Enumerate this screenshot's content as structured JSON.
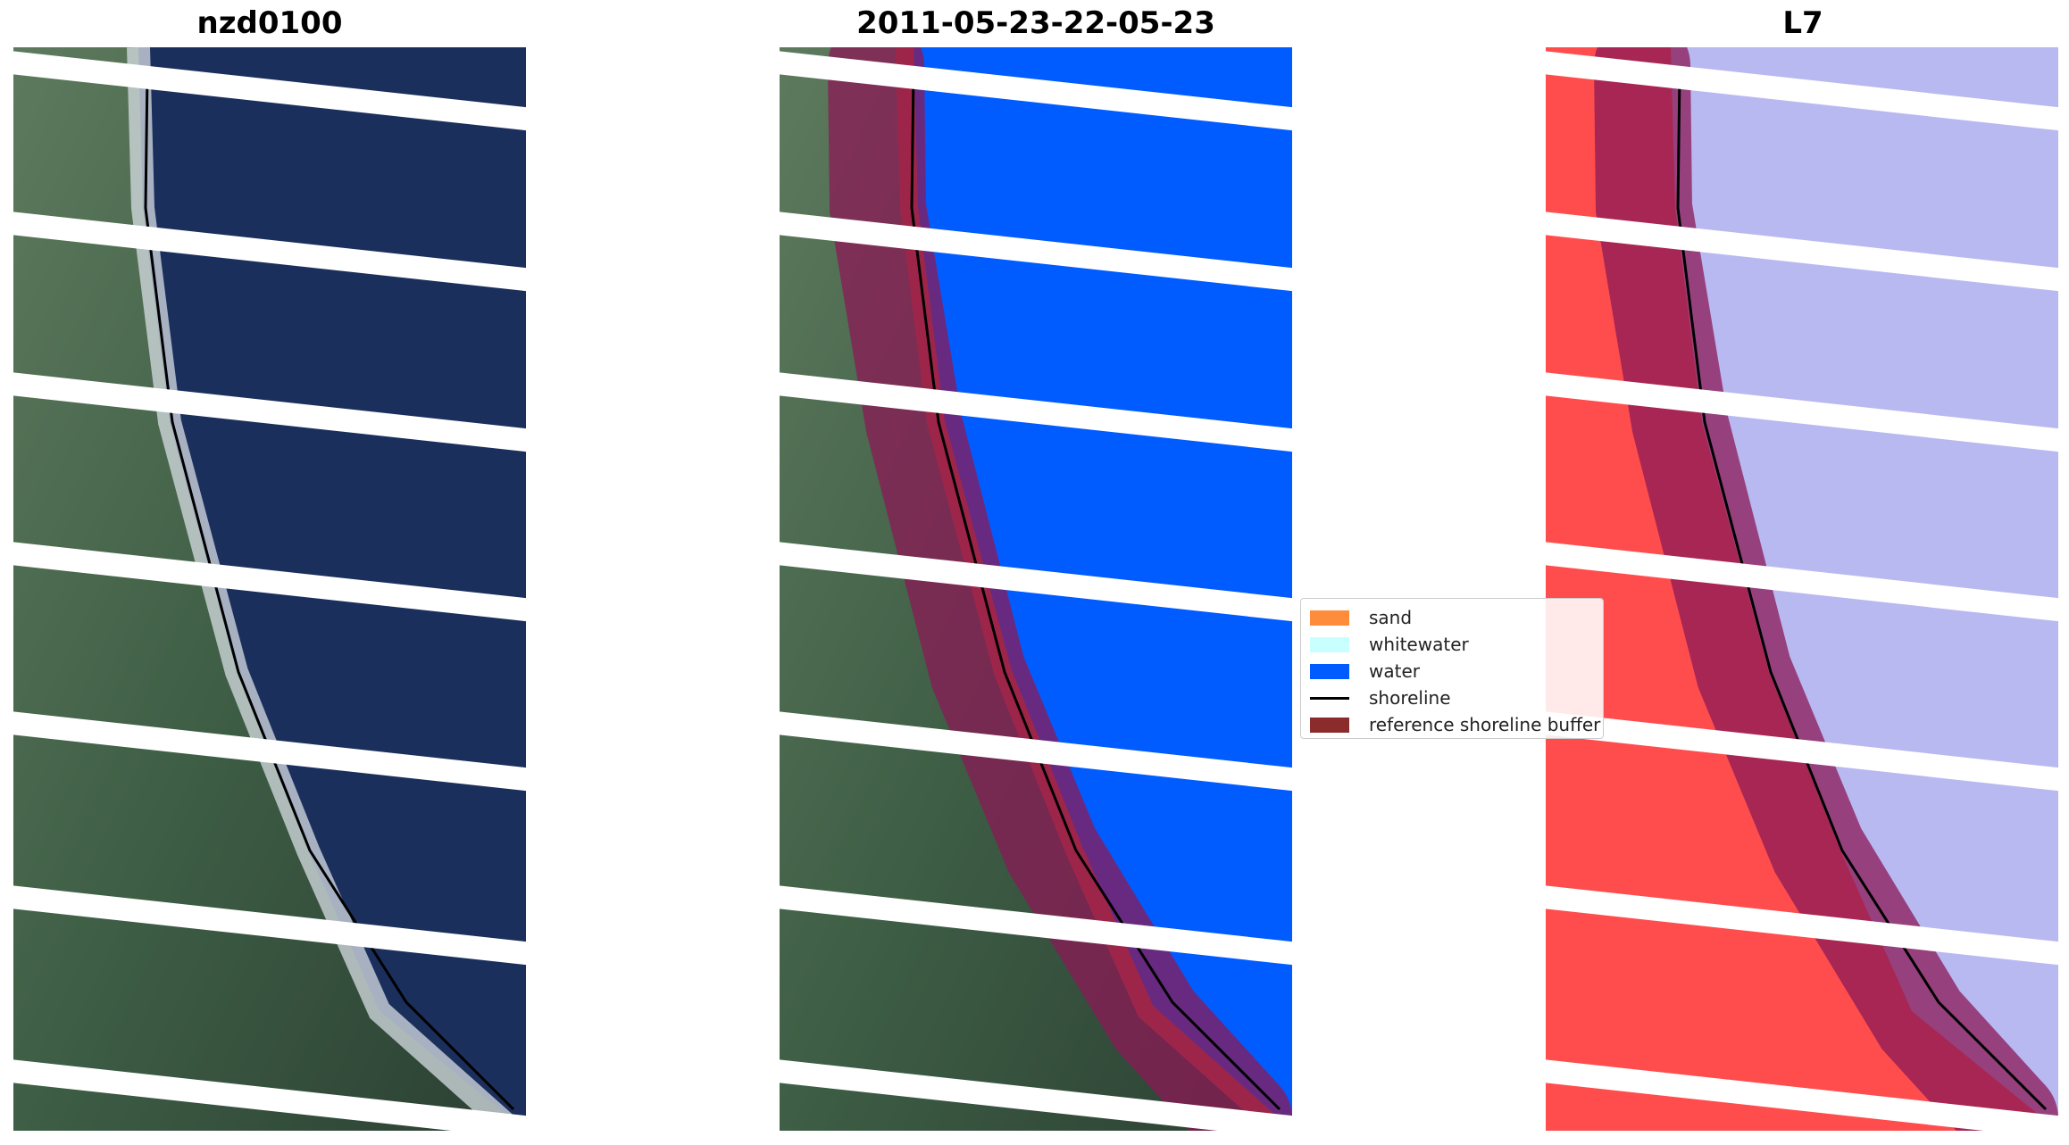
{
  "panels": [
    {
      "title": "nzd0100"
    },
    {
      "title": "2011-05-23-22-05-23"
    },
    {
      "title": "L7"
    }
  ],
  "legend": {
    "items": [
      {
        "label": "sand",
        "color": "#ff8c3a",
        "kind": "patch"
      },
      {
        "label": "whitewater",
        "color": "#c8ffff",
        "kind": "patch"
      },
      {
        "label": "water",
        "color": "#005cff",
        "kind": "patch"
      },
      {
        "label": "shoreline",
        "color": "#000000",
        "kind": "line"
      },
      {
        "label": "reference shoreline buffer",
        "color": "#8b2b2b",
        "kind": "patch"
      }
    ]
  },
  "colors": {
    "land": "#3f5f45",
    "ocean": "#1a2f5a",
    "class_water": "#005cff",
    "index_land": "#ff4a4a",
    "index_water": "#b7b7f0",
    "buffer": "#8b1a55",
    "stripe": "#ffffff"
  }
}
